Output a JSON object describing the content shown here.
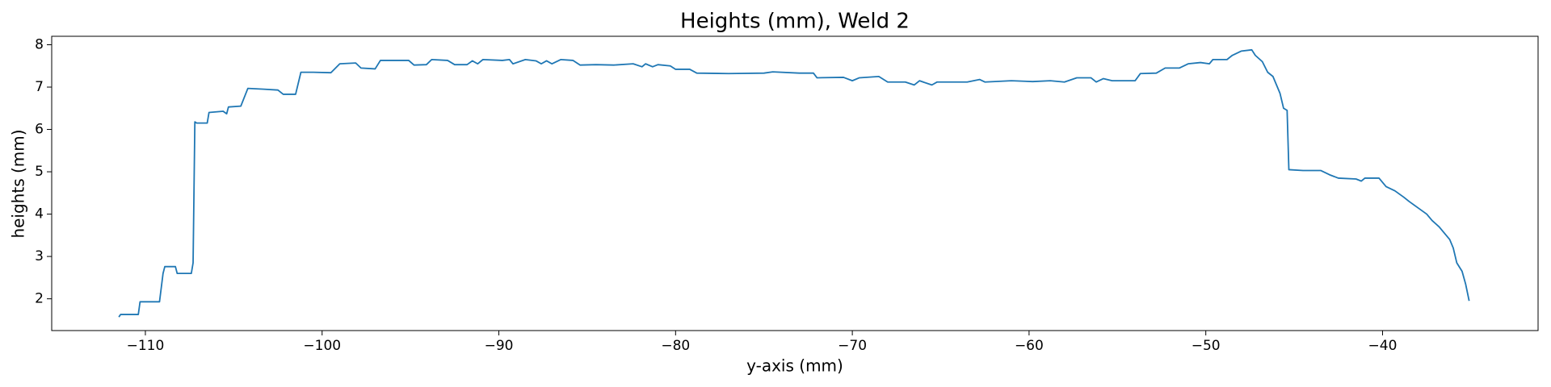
{
  "chart_data": {
    "type": "line",
    "title": "Heights (mm), Weld 2",
    "xlabel": "y-axis (mm)",
    "ylabel": "heights (mm)",
    "xlim": [
      -115.3,
      -31.2
    ],
    "ylim": [
      1.25,
      8.2
    ],
    "xticks": [
      {
        "value": -110,
        "label": "−110"
      },
      {
        "value": -100,
        "label": "−100"
      },
      {
        "value": -90,
        "label": "−90"
      },
      {
        "value": -80,
        "label": "−80"
      },
      {
        "value": -70,
        "label": "−70"
      },
      {
        "value": -60,
        "label": "−60"
      },
      {
        "value": -50,
        "label": "−50"
      },
      {
        "value": -40,
        "label": "−40"
      }
    ],
    "yticks": [
      2,
      3,
      4,
      5,
      6,
      7,
      8
    ],
    "series": [
      {
        "color": "#1f77b4",
        "x": [
          -111.5,
          -111.4,
          -110.4,
          -110.3,
          -109.2,
          -109.0,
          -108.9,
          -108.3,
          -108.2,
          -107.4,
          -107.3,
          -107.2,
          -107.1,
          -106.5,
          -106.4,
          -105.6,
          -105.4,
          -105.3,
          -104.6,
          -104.2,
          -103.3,
          -102.5,
          -102.2,
          -101.5,
          -101.2,
          -100.5,
          -99.5,
          -99.0,
          -98.1,
          -97.8,
          -97.0,
          -96.7,
          -95.6,
          -95.1,
          -94.8,
          -94.1,
          -93.8,
          -92.9,
          -92.5,
          -91.8,
          -91.5,
          -91.2,
          -90.9,
          -89.8,
          -89.4,
          -89.2,
          -88.5,
          -87.9,
          -87.6,
          -87.3,
          -87.0,
          -86.5,
          -85.8,
          -85.4,
          -84.5,
          -83.5,
          -82.4,
          -81.9,
          -81.7,
          -81.3,
          -81.0,
          -80.3,
          -80.0,
          -79.2,
          -78.8,
          -77.0,
          -75.0,
          -74.5,
          -73.0,
          -72.2,
          -72.0,
          -70.5,
          -70.0,
          -69.6,
          -68.5,
          -68.0,
          -67.0,
          -66.5,
          -66.2,
          -65.5,
          -65.2,
          -63.5,
          -62.8,
          -62.5,
          -61.0,
          -59.8,
          -58.8,
          -58.0,
          -57.3,
          -56.5,
          -56.2,
          -55.8,
          -55.3,
          -54.0,
          -53.7,
          -52.8,
          -52.3,
          -51.5,
          -51.0,
          -50.3,
          -49.8,
          -49.6,
          -48.8,
          -48.5,
          -48.0,
          -47.4,
          -47.2,
          -46.8,
          -46.5,
          -46.2,
          -46.0,
          -45.8,
          -45.6,
          -45.4,
          -45.3,
          -44.5,
          -43.5,
          -43.0,
          -42.5,
          -41.5,
          -41.2,
          -41.0,
          -40.2,
          -39.8,
          -39.3,
          -38.8,
          -38.5,
          -38.0,
          -37.5,
          -37.2,
          -36.8,
          -36.5,
          -36.2,
          -36.0,
          -35.8,
          -35.5,
          -35.3,
          -35.1
        ],
        "values": [
          1.57,
          1.63,
          1.63,
          1.93,
          1.93,
          2.6,
          2.76,
          2.76,
          2.6,
          2.6,
          2.85,
          6.18,
          6.15,
          6.15,
          6.4,
          6.43,
          6.37,
          6.53,
          6.55,
          6.97,
          6.95,
          6.93,
          6.83,
          6.83,
          7.35,
          7.35,
          7.34,
          7.55,
          7.57,
          7.45,
          7.43,
          7.63,
          7.63,
          7.63,
          7.52,
          7.53,
          7.65,
          7.63,
          7.53,
          7.53,
          7.62,
          7.55,
          7.65,
          7.63,
          7.65,
          7.55,
          7.65,
          7.62,
          7.55,
          7.62,
          7.55,
          7.65,
          7.63,
          7.52,
          7.53,
          7.52,
          7.55,
          7.48,
          7.55,
          7.48,
          7.53,
          7.5,
          7.42,
          7.42,
          7.33,
          7.32,
          7.33,
          7.36,
          7.33,
          7.33,
          7.22,
          7.23,
          7.15,
          7.22,
          7.25,
          7.12,
          7.12,
          7.05,
          7.15,
          7.05,
          7.12,
          7.12,
          7.18,
          7.12,
          7.15,
          7.13,
          7.15,
          7.12,
          7.22,
          7.22,
          7.12,
          7.2,
          7.15,
          7.15,
          7.32,
          7.33,
          7.45,
          7.45,
          7.55,
          7.58,
          7.55,
          7.65,
          7.65,
          7.75,
          7.85,
          7.88,
          7.75,
          7.6,
          7.35,
          7.25,
          7.05,
          6.85,
          6.5,
          6.45,
          5.05,
          5.03,
          5.03,
          4.93,
          4.85,
          4.83,
          4.78,
          4.85,
          4.85,
          4.65,
          4.55,
          4.4,
          4.3,
          4.15,
          4.0,
          3.85,
          3.7,
          3.55,
          3.4,
          3.2,
          2.85,
          2.65,
          2.35,
          1.95
        ]
      }
    ]
  }
}
